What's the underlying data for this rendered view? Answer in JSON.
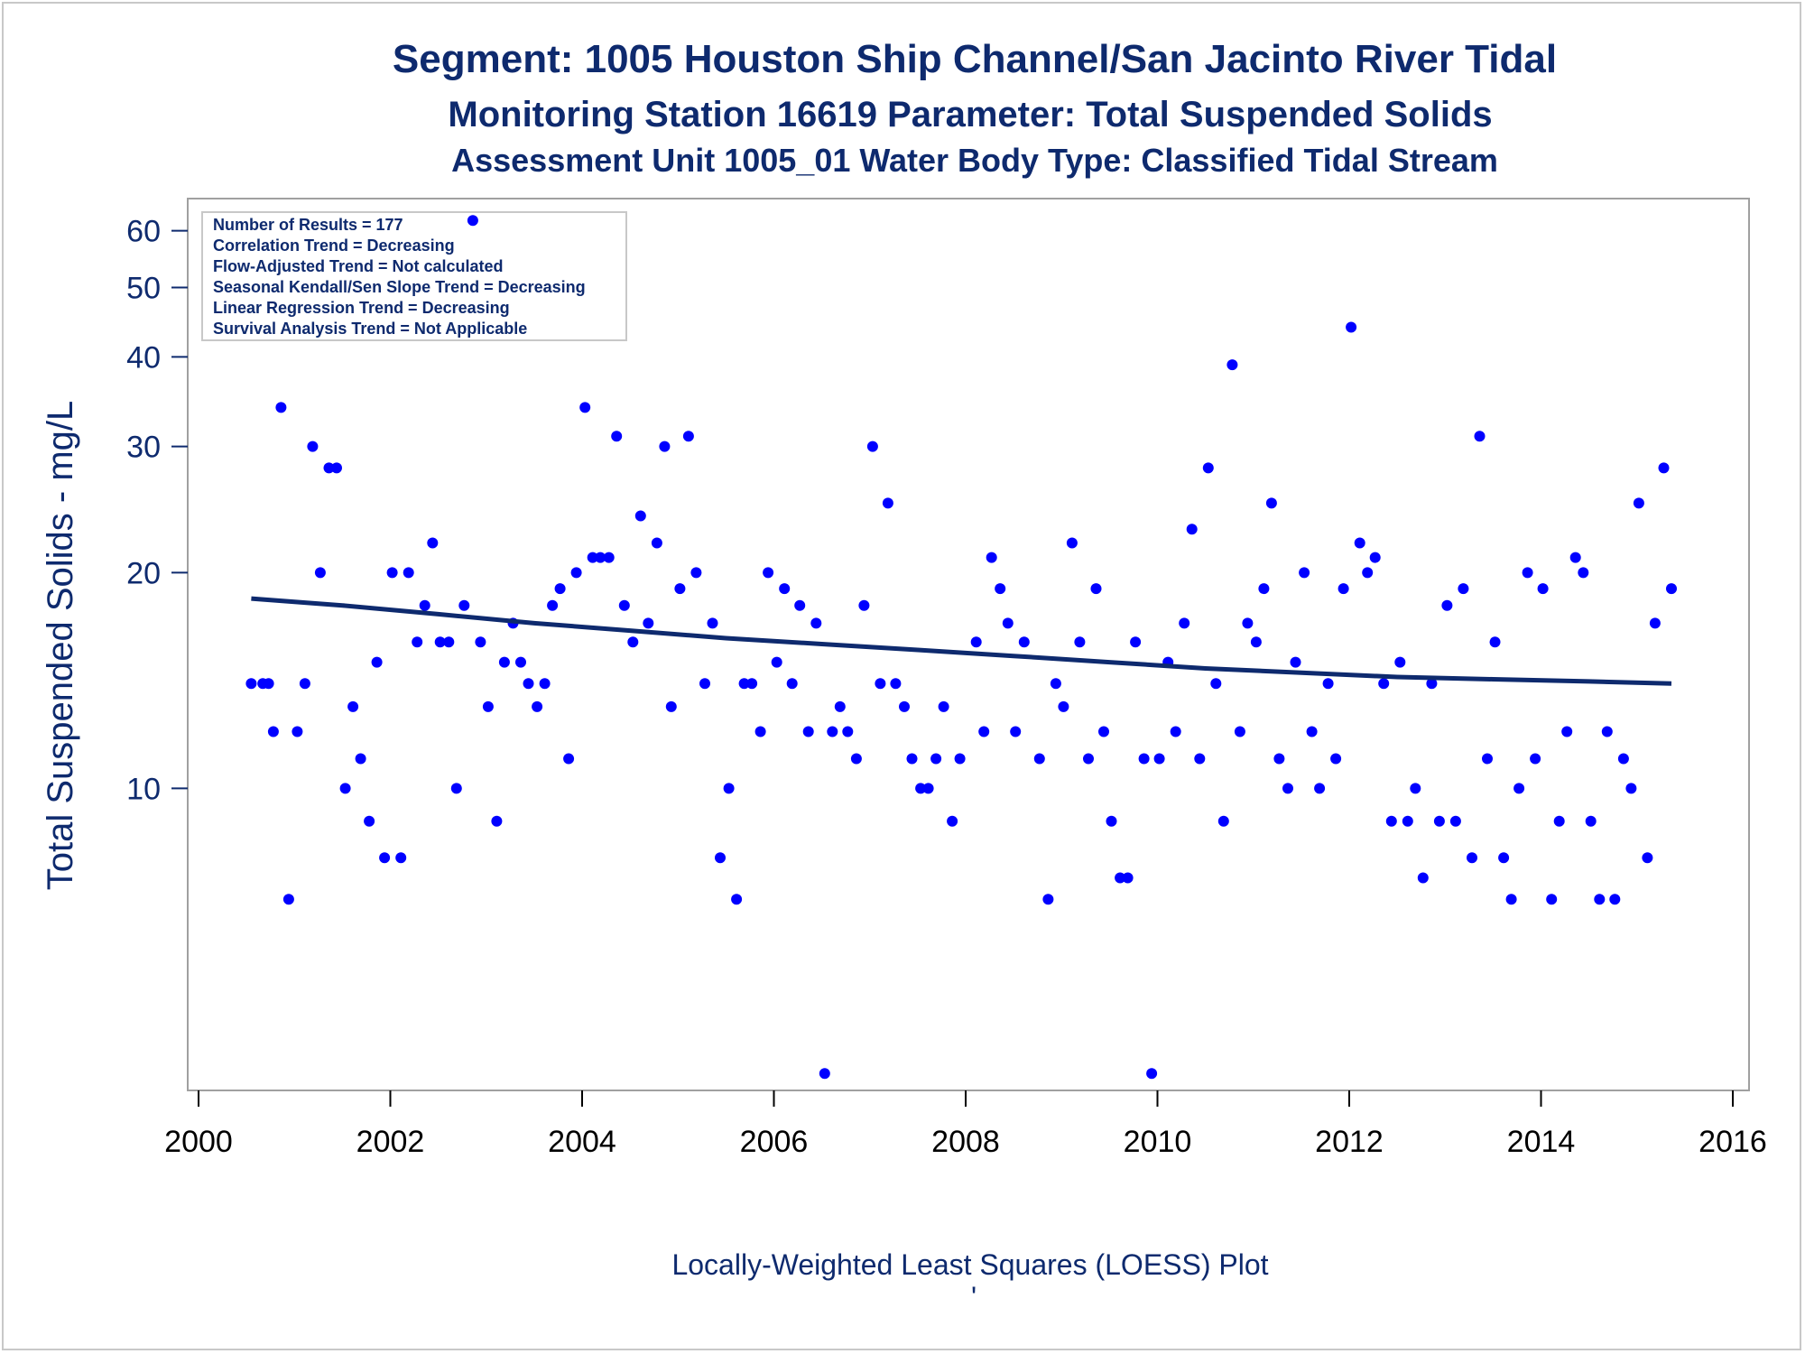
{
  "chart_data": {
    "type": "scatter",
    "title": "Segment: 1005  Houston Ship Channel/San Jacinto River Tidal",
    "subtitle": "Monitoring Station 16619 Parameter: Total Suspended Solids",
    "subtitle2": "Assessment Unit 1005_01   Water Body Type: Classified Tidal Stream",
    "xlabel": "",
    "ylabel": "Total Suspended Solids - mg/L",
    "footnote": "Locally-Weighted Least Squares (LOESS) Plot",
    "footnote_mark": "'",
    "yscale": "log",
    "xlim": [
      2000,
      2016
    ],
    "ylim": [
      3.9,
      65
    ],
    "x_ticks": [
      "2000",
      "2002",
      "2004",
      "2006",
      "2008",
      "2010",
      "2012",
      "2014",
      "2016"
    ],
    "y_ticks": [
      "10",
      "20",
      "30",
      "40",
      "50",
      "60"
    ],
    "y_tick_values": [
      10,
      20,
      30,
      40,
      50,
      60
    ],
    "x_tick_values": [
      2000,
      2002,
      2004,
      2006,
      2008,
      2010,
      2012,
      2014,
      2016
    ],
    "stats": [
      "Number of Results = 177",
      "Correlation Trend = Decreasing",
      "Flow-Adjusted Trend = Not calculated",
      "Seasonal Kendall/Sen Slope Trend = Decreasing",
      "Linear Regression Trend = Decreasing",
      "Survival Analysis Trend = Not Applicable"
    ],
    "legend_placement": "top-left",
    "grid": false,
    "point_color": "#0000ff",
    "line_color": "#0e2a6e",
    "series": [
      {
        "type": "scatter",
        "points": [
          [
            2000.55,
            14
          ],
          [
            2000.67,
            14
          ],
          [
            2000.73,
            14
          ],
          [
            2000.78,
            12
          ],
          [
            2000.86,
            34
          ],
          [
            2000.94,
            7
          ],
          [
            2001.03,
            12
          ],
          [
            2001.11,
            14
          ],
          [
            2001.19,
            30
          ],
          [
            2001.27,
            20
          ],
          [
            2001.36,
            28
          ],
          [
            2001.44,
            28
          ],
          [
            2001.53,
            10
          ],
          [
            2001.61,
            13
          ],
          [
            2001.69,
            11
          ],
          [
            2001.78,
            9
          ],
          [
            2001.86,
            15
          ],
          [
            2001.94,
            8
          ],
          [
            2002.02,
            20
          ],
          [
            2002.11,
            8
          ],
          [
            2002.19,
            20
          ],
          [
            2002.28,
            16
          ],
          [
            2002.36,
            18
          ],
          [
            2002.44,
            22
          ],
          [
            2002.52,
            16
          ],
          [
            2002.61,
            16
          ],
          [
            2002.69,
            10
          ],
          [
            2002.77,
            18
          ],
          [
            2002.86,
            62
          ],
          [
            2002.94,
            16
          ],
          [
            2003.02,
            13
          ],
          [
            2003.11,
            9
          ],
          [
            2003.19,
            15
          ],
          [
            2003.28,
            17
          ],
          [
            2003.36,
            15
          ],
          [
            2003.44,
            14
          ],
          [
            2003.53,
            13
          ],
          [
            2003.61,
            14
          ],
          [
            2003.69,
            18
          ],
          [
            2003.77,
            19
          ],
          [
            2003.86,
            11
          ],
          [
            2003.94,
            20
          ],
          [
            2004.03,
            34
          ],
          [
            2004.11,
            21
          ],
          [
            2004.19,
            21
          ],
          [
            2004.28,
            21
          ],
          [
            2004.36,
            31
          ],
          [
            2004.44,
            18
          ],
          [
            2004.53,
            16
          ],
          [
            2004.61,
            24
          ],
          [
            2004.69,
            17
          ],
          [
            2004.78,
            22
          ],
          [
            2004.86,
            30
          ],
          [
            2004.93,
            13
          ],
          [
            2005.02,
            19
          ],
          [
            2005.11,
            31
          ],
          [
            2005.19,
            20
          ],
          [
            2005.28,
            14
          ],
          [
            2005.36,
            17
          ],
          [
            2005.44,
            8
          ],
          [
            2005.53,
            10
          ],
          [
            2005.61,
            7
          ],
          [
            2005.69,
            14
          ],
          [
            2005.77,
            14
          ],
          [
            2005.86,
            12
          ],
          [
            2005.94,
            20
          ],
          [
            2006.03,
            15
          ],
          [
            2006.11,
            19
          ],
          [
            2006.19,
            14
          ],
          [
            2006.27,
            18
          ],
          [
            2006.36,
            12
          ],
          [
            2006.44,
            17
          ],
          [
            2006.53,
            4
          ],
          [
            2006.61,
            12
          ],
          [
            2006.69,
            13
          ],
          [
            2006.77,
            12
          ],
          [
            2006.86,
            11
          ],
          [
            2006.94,
            18
          ],
          [
            2007.03,
            30
          ],
          [
            2007.11,
            14
          ],
          [
            2007.19,
            25
          ],
          [
            2007.27,
            14
          ],
          [
            2007.36,
            13
          ],
          [
            2007.44,
            11
          ],
          [
            2007.53,
            10
          ],
          [
            2007.61,
            10
          ],
          [
            2007.69,
            11
          ],
          [
            2007.77,
            13
          ],
          [
            2007.86,
            9
          ],
          [
            2007.94,
            11
          ],
          [
            2008.11,
            16
          ],
          [
            2008.19,
            12
          ],
          [
            2008.27,
            21
          ],
          [
            2008.36,
            19
          ],
          [
            2008.44,
            17
          ],
          [
            2008.52,
            12
          ],
          [
            2008.61,
            16
          ],
          [
            2008.77,
            11
          ],
          [
            2008.86,
            7
          ],
          [
            2008.94,
            14
          ],
          [
            2009.02,
            13
          ],
          [
            2009.11,
            22
          ],
          [
            2009.19,
            16
          ],
          [
            2009.28,
            11
          ],
          [
            2009.36,
            19
          ],
          [
            2009.44,
            12
          ],
          [
            2009.52,
            9
          ],
          [
            2009.61,
            7.5
          ],
          [
            2009.69,
            7.5
          ],
          [
            2009.77,
            16
          ],
          [
            2009.86,
            11
          ],
          [
            2009.94,
            4
          ],
          [
            2010.02,
            11
          ],
          [
            2010.11,
            15
          ],
          [
            2010.19,
            12
          ],
          [
            2010.28,
            17
          ],
          [
            2010.36,
            23
          ],
          [
            2010.44,
            11
          ],
          [
            2010.53,
            28
          ],
          [
            2010.61,
            14
          ],
          [
            2010.69,
            9
          ],
          [
            2010.78,
            39
          ],
          [
            2010.86,
            12
          ],
          [
            2010.94,
            17
          ],
          [
            2011.03,
            16
          ],
          [
            2011.11,
            19
          ],
          [
            2011.19,
            25
          ],
          [
            2011.27,
            11
          ],
          [
            2011.36,
            10
          ],
          [
            2011.44,
            15
          ],
          [
            2011.53,
            20
          ],
          [
            2011.61,
            12
          ],
          [
            2011.69,
            10
          ],
          [
            2011.78,
            14
          ],
          [
            2011.86,
            11
          ],
          [
            2011.94,
            19
          ],
          [
            2012.02,
            44
          ],
          [
            2012.11,
            22
          ],
          [
            2012.19,
            20
          ],
          [
            2012.27,
            21
          ],
          [
            2012.36,
            14
          ],
          [
            2012.44,
            9
          ],
          [
            2012.53,
            15
          ],
          [
            2012.61,
            9
          ],
          [
            2012.69,
            10
          ],
          [
            2012.77,
            7.5
          ],
          [
            2012.86,
            14
          ],
          [
            2012.94,
            9
          ],
          [
            2013.02,
            18
          ],
          [
            2013.11,
            9
          ],
          [
            2013.19,
            19
          ],
          [
            2013.28,
            8
          ],
          [
            2013.36,
            31
          ],
          [
            2013.44,
            11
          ],
          [
            2013.52,
            16
          ],
          [
            2013.61,
            8
          ],
          [
            2013.69,
            7
          ],
          [
            2013.77,
            10
          ],
          [
            2013.86,
            20
          ],
          [
            2013.94,
            11
          ],
          [
            2014.02,
            19
          ],
          [
            2014.11,
            7
          ],
          [
            2014.19,
            9
          ],
          [
            2014.27,
            12
          ],
          [
            2014.36,
            21
          ],
          [
            2014.44,
            20
          ],
          [
            2014.52,
            9
          ],
          [
            2014.61,
            7
          ],
          [
            2014.69,
            12
          ],
          [
            2014.77,
            7
          ],
          [
            2014.86,
            11
          ],
          [
            2014.94,
            10
          ],
          [
            2015.02,
            25
          ],
          [
            2015.11,
            8
          ],
          [
            2015.19,
            17
          ],
          [
            2015.28,
            28
          ],
          [
            2015.36,
            19
          ]
        ]
      },
      {
        "type": "line",
        "points": [
          [
            2000.55,
            18.4
          ],
          [
            2001.5,
            18.0
          ],
          [
            2002.5,
            17.5
          ],
          [
            2003.5,
            17.0
          ],
          [
            2004.5,
            16.6
          ],
          [
            2005.5,
            16.2
          ],
          [
            2006.5,
            15.9
          ],
          [
            2007.5,
            15.6
          ],
          [
            2008.5,
            15.3
          ],
          [
            2009.5,
            15.0
          ],
          [
            2010.5,
            14.7
          ],
          [
            2011.5,
            14.5
          ],
          [
            2012.5,
            14.3
          ],
          [
            2013.5,
            14.2
          ],
          [
            2014.5,
            14.1
          ],
          [
            2015.36,
            14.0
          ]
        ]
      }
    ]
  }
}
